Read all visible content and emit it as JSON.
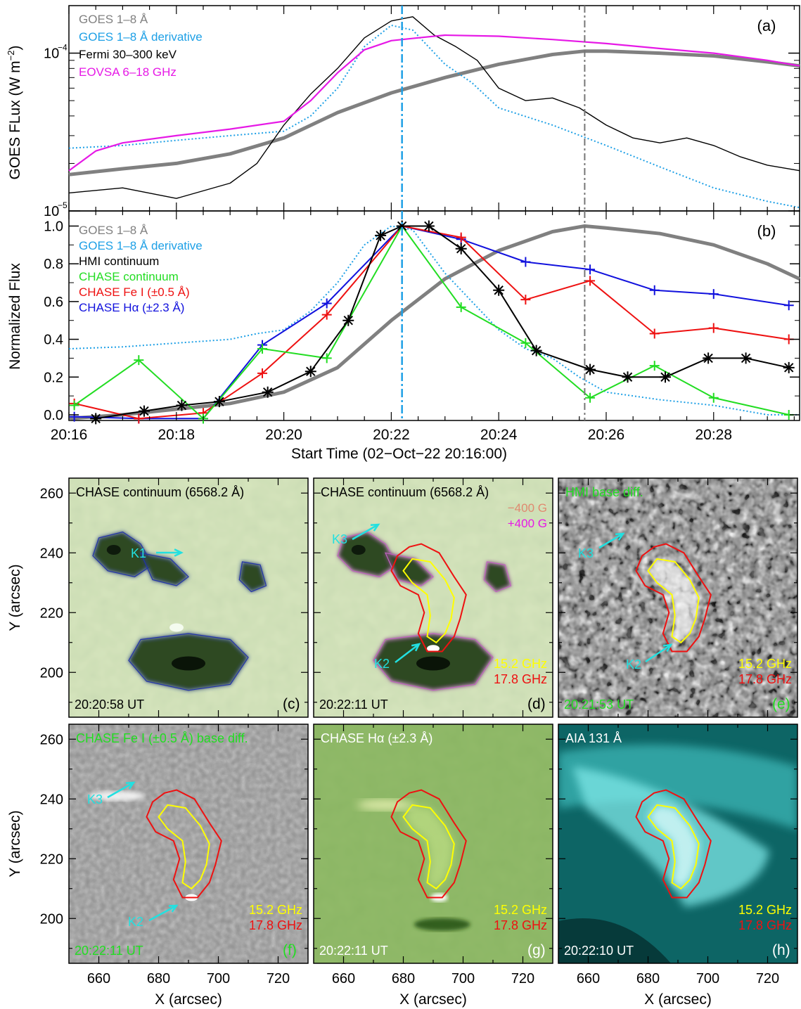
{
  "panel_a": {
    "label": "(a)",
    "ylabel": "GOES FLux  (W m",
    "ylabel_sup": "−2",
    "ylabel_close": ")",
    "yticks": [
      {
        "base": "10",
        "exp": "−4",
        "value": 0.0001
      },
      {
        "base": "10",
        "exp": "−5",
        "value": 1e-05
      }
    ],
    "legend": [
      {
        "text": "GOES 1–8 Å",
        "color": "#808080"
      },
      {
        "text": "GOES 1–8 Å derivative",
        "color": "#1ea0e6"
      },
      {
        "text": "Fermi 30–300 keV",
        "color": "#000000"
      },
      {
        "text": "EOVSA 6–18 GHz",
        "color": "#e619e6"
      }
    ]
  },
  "panel_b": {
    "label": "(b)",
    "ylabel": "Normalized Flux",
    "yticks": [
      "0.0",
      "0.2",
      "0.4",
      "0.6",
      "0.8",
      "1.0"
    ],
    "legend": [
      {
        "text": "GOES 1–8 Å",
        "color": "#808080"
      },
      {
        "text": "GOES 1–8 Å derivative",
        "color": "#1ea0e6"
      },
      {
        "text": "HMI continuum",
        "color": "#000000"
      },
      {
        "text": "CHASE continuum",
        "color": "#22dd22"
      },
      {
        "text": "CHASE Fe I (±0.5 Å)",
        "color": "#ee1111"
      },
      {
        "text": "CHASE Hα (±2.3 Å)",
        "color": "#1111dd"
      }
    ],
    "xticks": [
      "20:16",
      "20:18",
      "20:20",
      "20:22",
      "20:24",
      "20:26",
      "20:28"
    ],
    "xlabel": "Start Time (02−Oct−22 20:16:00)"
  },
  "maps": {
    "xlabel": "X (arcsec)",
    "ylabel": "Y (arcsec)",
    "xticks": [
      "660",
      "680",
      "700",
      "720"
    ],
    "yticks": [
      "260",
      "240",
      "220",
      "200"
    ],
    "panels": [
      {
        "id": "c",
        "tag": "(c)",
        "title": "CHASE continuum (6568.2 Å)",
        "time": "20:20:58 UT",
        "kind": "cont",
        "title_color": "#000000",
        "time_color": "#000000",
        "tag_color": "#000000"
      },
      {
        "id": "d",
        "tag": "(d)",
        "title": "CHASE continuum (6568.2 Å)",
        "time": "20:22:11 UT",
        "kind": "cont",
        "title_color": "#000000",
        "time_color": "#000000",
        "tag_color": "#000000",
        "extra1": "−400 G",
        "extra2": "+400 G",
        "f1": "15.2 GHz",
        "f2": "17.8 GHz"
      },
      {
        "id": "e",
        "tag": "(e)",
        "title": "HMI base diff.",
        "time": "20:21:53 UT",
        "kind": "noise",
        "title_color": "#22dd22",
        "time_color": "#22dd22",
        "tag_color": "#22dd22",
        "f1": "15.2 GHz",
        "f2": "17.8 GHz"
      },
      {
        "id": "f",
        "tag": "(f)",
        "title": "CHASE Fe I (±0.5 Å) base diff.",
        "time": "20:22:11 UT",
        "kind": "grey",
        "title_color": "#22dd22",
        "time_color": "#22dd22",
        "tag_color": "#22dd22",
        "f1": "15.2 GHz",
        "f2": "17.8 GHz"
      },
      {
        "id": "g",
        "tag": "(g)",
        "title": "CHASE Hα (±2.3 Å)",
        "time": "20:22:11 UT",
        "kind": "green",
        "title_color": "#ffffff",
        "time_color": "#ffffff",
        "tag_color": "#ffffff",
        "f1": "15.2 GHz",
        "f2": "17.8 GHz"
      },
      {
        "id": "h",
        "tag": "(h)",
        "title": "AIA 131 Å",
        "time": "20:22:10 UT",
        "kind": "teal",
        "title_color": "#ffffff",
        "time_color": "#ffffff",
        "tag_color": "#ffffff",
        "f1": "15.2 GHz",
        "f2": "17.8 GHz"
      }
    ],
    "kernels": {
      "K1": "K1",
      "K2": "K2",
      "K3": "K3"
    }
  },
  "colors": {
    "goes": "#808080",
    "deriv": "#1ea0e6",
    "fermi": "#000000",
    "eovsa": "#e619e6",
    "hmi": "#000000",
    "chase_cont": "#22dd22",
    "chase_fe": "#ee1111",
    "chase_ha": "#1111dd",
    "f152": "#ffff00",
    "f178": "#ee1111",
    "kernel": "#22e0e0"
  },
  "chart_data": [
    {
      "type": "line",
      "panel": "a",
      "ylog": true,
      "ylim": [
        1e-05,
        0.0002
      ],
      "xlim_min": [
        0,
        13.6
      ],
      "vlines_min": [
        6.2,
        9.6
      ],
      "series": [
        {
          "name": "GOES 1–8 Å",
          "x": [
            0,
            1,
            2,
            3,
            4,
            5,
            6,
            7,
            8,
            9,
            9.6,
            10,
            11,
            12,
            13,
            13.6
          ],
          "y": [
            1.7e-05,
            1.85e-05,
            2e-05,
            2.3e-05,
            2.9e-05,
            4.2e-05,
            5.6e-05,
            7e-05,
            8.5e-05,
            9.8e-05,
            0.000103,
            0.000103,
            0.0001,
            9.6e-05,
            8.8e-05,
            8.3e-05
          ]
        },
        {
          "name": "GOES 1–8 Å derivative",
          "x": [
            0,
            1,
            2,
            3,
            4,
            4.5,
            5,
            5.5,
            6,
            6.4,
            7,
            7.5,
            8,
            9,
            10,
            11,
            12,
            13,
            13.6
          ],
          "y": [
            2.5e-05,
            2.6e-05,
            2.8e-05,
            3e-05,
            3.2e-05,
            4e-05,
            6e-05,
            0.00011,
            0.00015,
            0.00014,
            8.5e-05,
            6.5e-05,
            4.5e-05,
            3.5e-05,
            2.6e-05,
            1.9e-05,
            1.4e-05,
            1.15e-05,
            1.05e-05
          ]
        },
        {
          "name": "Fermi 30–300 keV",
          "x": [
            0,
            1,
            2,
            3,
            3.5,
            4,
            4.5,
            5,
            5.5,
            6,
            6.4,
            6.8,
            7.2,
            7.6,
            8,
            8.5,
            9,
            9.5,
            10,
            10.5,
            11,
            11.5,
            12,
            12.5,
            13,
            13.6
          ],
          "y": [
            1.3e-05,
            1.4e-05,
            1.2e-05,
            1.5e-05,
            2e-05,
            3.5e-05,
            5.5e-05,
            8e-05,
            0.000125,
            0.00016,
            0.00017,
            0.00013,
            0.00011,
            9e-05,
            6e-05,
            5e-05,
            5.2e-05,
            4.5e-05,
            3.5e-05,
            2.9e-05,
            2.7e-05,
            2.9e-05,
            2.6e-05,
            2.2e-05,
            1.95e-05,
            1.8e-05
          ]
        },
        {
          "name": "EOVSA 6–18 GHz",
          "x": [
            0,
            0.5,
            1,
            2,
            3,
            4,
            4.5,
            5,
            5.5,
            6,
            6.5,
            7,
            8,
            9,
            10,
            11,
            12,
            13,
            13.6
          ],
          "y": [
            1.8e-05,
            2.4e-05,
            2.7e-05,
            3e-05,
            3.3e-05,
            3.7e-05,
            5e-05,
            7.5e-05,
            0.000105,
            0.00012,
            0.000125,
            0.00013,
            0.000128,
            0.000122,
            0.000115,
            0.000107,
            0.0001,
            9e-05,
            8.3e-05
          ]
        }
      ]
    },
    {
      "type": "line",
      "panel": "b",
      "xlabel": "Start Time (02−Oct−22 20:16:00)",
      "ylabel": "Normalized Flux",
      "ylim": [
        -0.03,
        1.08
      ],
      "xlim_min": [
        0,
        13.6
      ],
      "vlines_min": [
        6.2,
        9.6
      ],
      "series": [
        {
          "name": "GOES 1–8 Å",
          "x": [
            0,
            1,
            2,
            3,
            4,
            5,
            6,
            7,
            8,
            9,
            9.6,
            10,
            11,
            12,
            13,
            13.6
          ],
          "y": [
            -0.02,
            0.0,
            0.03,
            0.06,
            0.12,
            0.25,
            0.5,
            0.72,
            0.87,
            0.97,
            1.0,
            0.99,
            0.96,
            0.9,
            0.8,
            0.72
          ]
        },
        {
          "name": "GOES 1–8 Å derivative",
          "x": [
            0,
            1,
            2,
            3,
            3.5,
            4,
            4.5,
            5,
            5.5,
            6,
            6.4,
            7,
            7.5,
            8,
            8.5,
            9,
            9.5,
            10,
            11,
            12,
            13,
            13.6
          ],
          "y": [
            0.35,
            0.36,
            0.38,
            0.4,
            0.43,
            0.45,
            0.55,
            0.7,
            0.9,
            1.0,
            0.98,
            0.75,
            0.6,
            0.45,
            0.35,
            0.3,
            0.2,
            0.12,
            0.08,
            0.05,
            0.0,
            0.0
          ]
        },
        {
          "name": "HMI continuum",
          "x": [
            0.5,
            1.4,
            2.1,
            2.8,
            3.7,
            4.5,
            5.2,
            5.8,
            6.2,
            6.7,
            7.3,
            8.0,
            8.7,
            9.7,
            10.4,
            11.1,
            11.9,
            12.6,
            13.4
          ],
          "y": [
            -0.02,
            0.02,
            0.05,
            0.07,
            0.12,
            0.23,
            0.5,
            0.95,
            1.0,
            1.0,
            0.88,
            0.66,
            0.34,
            0.24,
            0.2,
            0.2,
            0.3,
            0.3,
            0.25
          ]
        },
        {
          "name": "CHASE continuum",
          "x": [
            0.1,
            1.3,
            2.5,
            3.6,
            4.8,
            6.2,
            7.3,
            8.5,
            9.7,
            10.9,
            12.0,
            13.4
          ],
          "y": [
            0.05,
            0.29,
            -0.02,
            0.35,
            0.3,
            1.0,
            0.57,
            0.38,
            0.09,
            0.26,
            0.09,
            0.0
          ]
        },
        {
          "name": "CHASE Fe I (±0.5 Å)",
          "x": [
            0.1,
            1.3,
            2.5,
            3.6,
            4.8,
            6.2,
            7.3,
            8.5,
            9.7,
            10.9,
            12.0,
            13.4
          ],
          "y": [
            0.06,
            -0.02,
            0.01,
            0.22,
            0.53,
            1.0,
            0.94,
            0.61,
            0.71,
            0.43,
            0.46,
            0.4
          ]
        },
        {
          "name": "CHASE Hα (±2.3 Å)",
          "x": [
            0.1,
            1.3,
            2.5,
            3.6,
            4.8,
            6.2,
            7.3,
            8.5,
            9.7,
            10.9,
            12.0,
            13.4
          ],
          "y": [
            -0.01,
            -0.02,
            -0.02,
            0.37,
            0.59,
            1.0,
            0.93,
            0.81,
            0.77,
            0.66,
            0.64,
            0.58
          ]
        }
      ]
    }
  ]
}
